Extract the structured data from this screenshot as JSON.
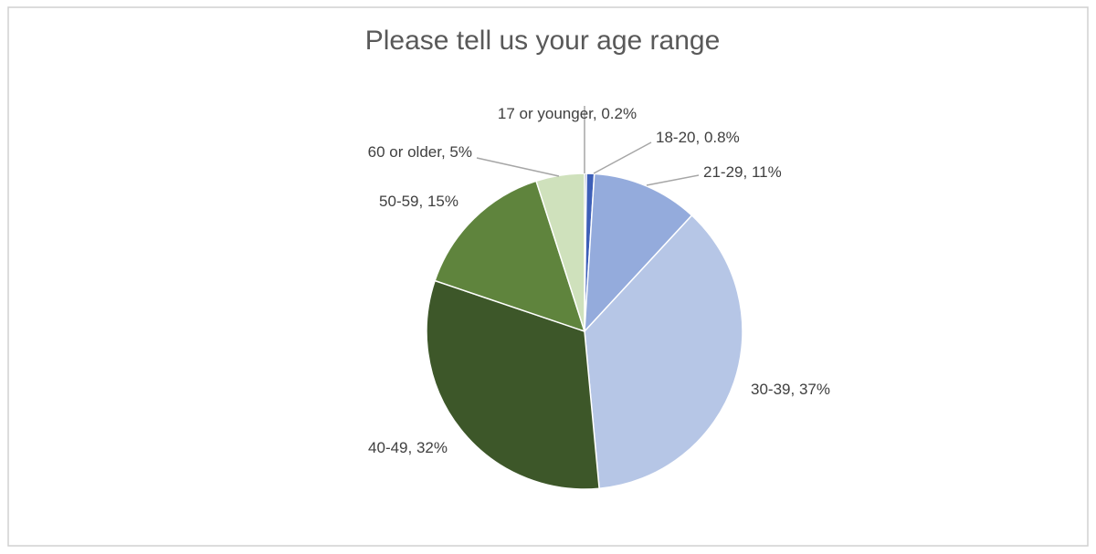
{
  "chart_data": {
    "type": "pie",
    "title": "Please tell us your age range",
    "categories": [
      "17 or younger",
      "18-20",
      "21-29",
      "30-39",
      "40-49",
      "50-59",
      "60 or older"
    ],
    "values": [
      0.2,
      0.8,
      11,
      37,
      32,
      15,
      5
    ],
    "value_labels": [
      "0.2%",
      "0.8%",
      "11%",
      "37%",
      "32%",
      "15%",
      "5%"
    ],
    "label_separator": ", ",
    "colors": [
      "#2c4a8c",
      "#3d5fb8",
      "#94abdc",
      "#b6c6e6",
      "#3d5729",
      "#5f843d",
      "#cfe1bc"
    ]
  }
}
